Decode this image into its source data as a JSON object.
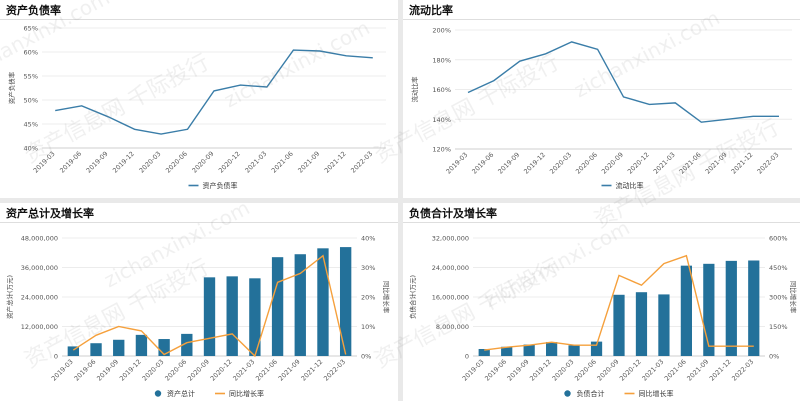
{
  "watermark": [
    "资产信息网 千际投行",
    "zichanxinxi.com"
  ],
  "chart_data": [
    {
      "type": "line",
      "title": "资产负债率",
      "ylabel": "资产负债率",
      "categories": [
        "2019-03",
        "2019-06",
        "2019-09",
        "2019-12",
        "2020-03",
        "2020-06",
        "2020-09",
        "2020-12",
        "2021-03",
        "2021-06",
        "2021-09",
        "2021-12",
        "2022-03"
      ],
      "yticks": [
        "40%",
        "45%",
        "50%",
        "55%",
        "60%",
        "65%"
      ],
      "ylim": [
        40,
        65
      ],
      "series": [
        {
          "name": "资产负债率",
          "color": "#3a7da8",
          "values": [
            47.8,
            48.8,
            46.5,
            43.9,
            42.9,
            43.9,
            51.9,
            53.1,
            52.7,
            60.4,
            60.2,
            59.2,
            58.8
          ]
        }
      ],
      "legend": "bottom-center",
      "grid": true
    },
    {
      "type": "line",
      "title": "流动比率",
      "ylabel": "流动比率",
      "categories": [
        "2019-03",
        "2019-06",
        "2019-09",
        "2019-12",
        "2020-03",
        "2020-06",
        "2020-09",
        "2020-12",
        "2021-03",
        "2021-06",
        "2021-09",
        "2021-12",
        "2022-03"
      ],
      "yticks": [
        "120%",
        "140%",
        "160%",
        "180%",
        "200%"
      ],
      "ylim": [
        120,
        200
      ],
      "series": [
        {
          "name": "流动比率",
          "color": "#3a7da8",
          "values": [
            158,
            166,
            179,
            184,
            192,
            187,
            155,
            150,
            151,
            138,
            140,
            142,
            142
          ]
        }
      ],
      "legend": "bottom-center",
      "grid": true
    },
    {
      "type": "bar",
      "title": "资产总计及增长率",
      "ylabel": "资产总计(万元)",
      "y2label": "同比增长率",
      "categories": [
        "2019-03",
        "2019-06",
        "2019-09",
        "2019-12",
        "2020-03",
        "2020-06",
        "2020-09",
        "2020-12",
        "2021-03",
        "2021-06",
        "2021-09",
        "2021-12",
        "2022-03"
      ],
      "yticks": [
        "0",
        "12,000,000",
        "24,000,000",
        "36,000,000",
        "48,000,000"
      ],
      "y2ticks": [
        "0%",
        "10%",
        "20%",
        "30%",
        "40%"
      ],
      "ylim": [
        0,
        48000000
      ],
      "y2lim": [
        0,
        40
      ],
      "series": [
        {
          "name": "资产总计",
          "kind": "bar",
          "color": "#23719a",
          "values": [
            3900000,
            5200000,
            6600000,
            8600000,
            6900000,
            9000000,
            32000000,
            32400000,
            31600000,
            40200000,
            41400000,
            43800000,
            44300000
          ]
        },
        {
          "name": "同比增长率",
          "kind": "line",
          "axis": "right",
          "color": "#f5a03c",
          "values": [
            2,
            7,
            10,
            8.5,
            0.5,
            4.5,
            6,
            7.5,
            0,
            25,
            28,
            34,
            0.5
          ]
        }
      ],
      "legend": "bottom-center",
      "grid": true
    },
    {
      "type": "bar",
      "title": "负债合计及增长率",
      "ylabel": "负债合计(万元)",
      "y2label": "同比增长率",
      "categories": [
        "2019-03",
        "2019-06",
        "2019-09",
        "2019-12",
        "2020-03",
        "2020-06",
        "2020-09",
        "2020-12",
        "2021-03",
        "2021-06",
        "2021-09",
        "2021-12",
        "2022-03"
      ],
      "yticks": [
        "0",
        "8,000,000",
        "16,000,000",
        "24,000,000",
        "32,000,000"
      ],
      "y2ticks": [
        "0%",
        "150%",
        "300%",
        "450%",
        "600%"
      ],
      "ylim": [
        0,
        32000000
      ],
      "y2lim": [
        0,
        600
      ],
      "series": [
        {
          "name": "负债合计",
          "kind": "bar",
          "color": "#23719a",
          "values": [
            1900000,
            2500000,
            3100000,
            3800000,
            2900000,
            3900000,
            16600000,
            17300000,
            16700000,
            24500000,
            25000000,
            25800000,
            25900000
          ]
        },
        {
          "name": "同比增长率",
          "kind": "line",
          "axis": "right",
          "color": "#f5a03c",
          "values": [
            30,
            45,
            55,
            70,
            55,
            55,
            410,
            360,
            470,
            510,
            50,
            50,
            50
          ]
        }
      ],
      "legend": "bottom-center",
      "grid": true
    }
  ]
}
